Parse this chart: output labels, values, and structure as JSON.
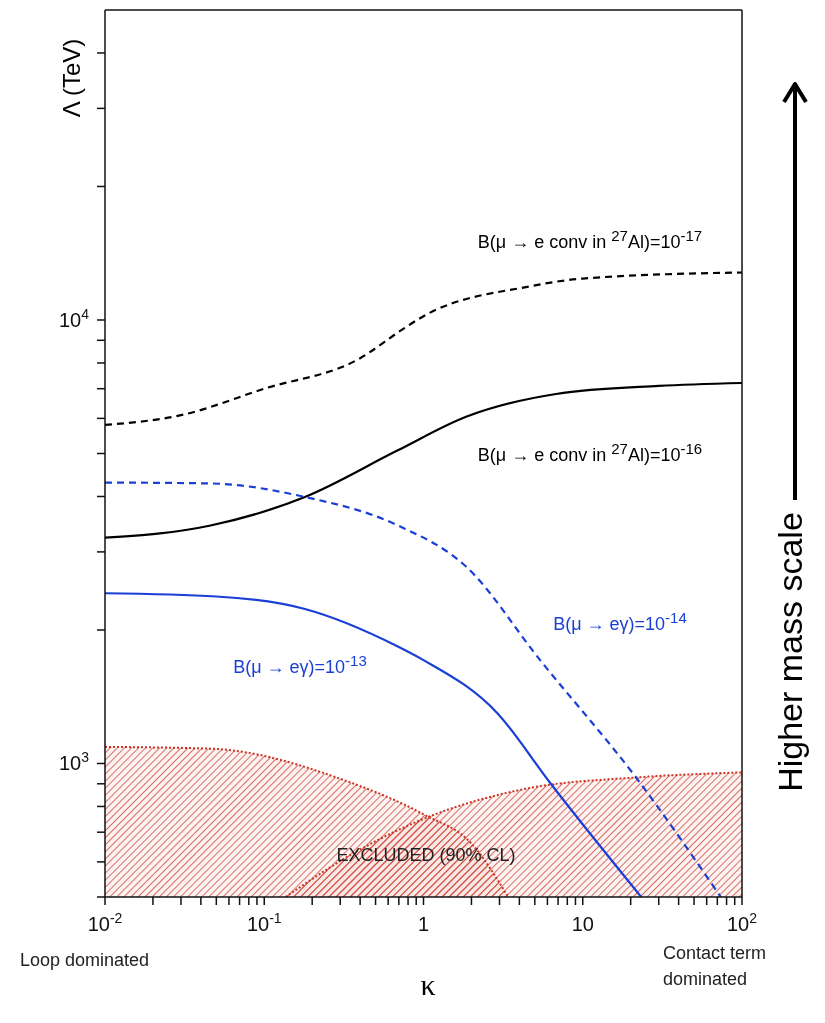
{
  "chart_data": {
    "type": "line",
    "xlabel": "κ",
    "ylabel": "Λ (TeV)",
    "log": "xy",
    "marker": "none",
    "xlim": [
      0.01,
      100
    ],
    "ylim": [
      500,
      50000
    ],
    "xticks": [
      {
        "value": 0.01,
        "label": "10$^{-2}$"
      },
      {
        "value": 0.02,
        "label": null
      },
      {
        "value": 0.03,
        "label": null
      },
      {
        "value": 0.04,
        "label": null
      },
      {
        "value": 0.05,
        "label": null
      },
      {
        "value": 0.06,
        "label": null
      },
      {
        "value": 0.07,
        "label": null
      },
      {
        "value": 0.08,
        "label": null
      },
      {
        "value": 0.09,
        "label": null
      },
      {
        "value": 0.1,
        "label": "10$^{-1}$"
      },
      {
        "value": 0.2,
        "label": null
      },
      {
        "value": 0.3,
        "label": null
      },
      {
        "value": 0.4,
        "label": null
      },
      {
        "value": 0.5,
        "label": null
      },
      {
        "value": 0.6,
        "label": null
      },
      {
        "value": 0.7,
        "label": null
      },
      {
        "value": 0.8,
        "label": null
      },
      {
        "value": 0.9,
        "label": null
      },
      1,
      {
        "value": 2,
        "label": null
      },
      {
        "value": 3,
        "label": null
      },
      {
        "value": 4,
        "label": null
      },
      {
        "value": 5,
        "label": null
      },
      {
        "value": 6,
        "label": null
      },
      {
        "value": 7,
        "label": null
      },
      {
        "value": 8,
        "label": null
      },
      {
        "value": 9,
        "label": null
      },
      10,
      {
        "value": 20,
        "label": null
      },
      {
        "value": 30,
        "label": null
      },
      {
        "value": 40,
        "label": null
      },
      {
        "value": 50,
        "label": null
      },
      {
        "value": 60,
        "label": null
      },
      {
        "value": 70,
        "label": null
      },
      {
        "value": 80,
        "label": null
      },
      {
        "value": 90,
        "label": null
      },
      {
        "value": 100,
        "label": "10$^{2}$"
      }
    ],
    "yticks": [
      {
        "value": 500,
        "label": null
      },
      {
        "value": 600,
        "label": null
      },
      {
        "value": 700,
        "label": null
      },
      {
        "value": 800,
        "label": null
      },
      {
        "value": 900,
        "label": null
      },
      {
        "value": 1000,
        "label": "10$^{3}$"
      },
      {
        "value": 2000,
        "label": null
      },
      {
        "value": 3000,
        "label": null
      },
      {
        "value": 4000,
        "label": null
      },
      {
        "value": 5000,
        "label": null
      },
      {
        "value": 6000,
        "label": null
      },
      {
        "value": 7000,
        "label": null
      },
      {
        "value": 8000,
        "label": null
      },
      {
        "value": 9000,
        "label": null
      },
      {
        "value": 10000,
        "label": "10$^{4}$"
      },
      {
        "value": 20000,
        "label": null
      },
      {
        "value": 30000,
        "label": null
      },
      {
        "value": 40000,
        "label": null
      }
    ],
    "series": [
      {
        "type": "area",
        "color": "#cc3322",
        "line_style": "dotted",
        "x": [
          0.01,
          0.046,
          0.32,
          1,
          2,
          3.4
        ],
        "values": [
          1090,
          1080,
          916,
          768,
          660,
          500
        ]
      },
      {
        "type": "area",
        "color": "#cc3322",
        "line_style": "dotted",
        "x": [
          0.136,
          0.4,
          1,
          4.6,
          21.6,
          100
        ],
        "values": [
          500,
          640,
          750,
          880,
          930,
          955
        ]
      },
      {
        "name": "B(μ → e conv in $^{27}$Al)=10$^{-17}$",
        "color": "#000000",
        "line_style": "dashed",
        "x": [
          0.01,
          0.03,
          0.1,
          0.4,
          0.73,
          1,
          4.6,
          10,
          100
        ],
        "values": [
          5800,
          6100,
          7000,
          8200,
          9500,
          10200,
          11900,
          12400,
          12800
        ]
      },
      {
        "name": "B(μ → e conv in $^{27}$Al)=10$^{-16}$",
        "color": "#000000",
        "line_style": "solid",
        "x": [
          0.01,
          0.046,
          0.18,
          0.68,
          1.85,
          6.8,
          30,
          100
        ],
        "values": [
          3230,
          3440,
          3990,
          5070,
          6050,
          6810,
          7100,
          7210
        ]
      },
      {
        "name": "B(μ → eγ)=10$^{-14}$",
        "color": "#1a3fd6",
        "line_style": "dashed",
        "x": [
          0.01,
          0.046,
          0.18,
          0.68,
          1.85,
          5.4,
          21.6,
          73.6
        ],
        "values": [
          4300,
          4280,
          3990,
          3450,
          2780,
          1710,
          930,
          500
        ]
      },
      {
        "name": "B(μ → eγ)=10$^{-13}$",
        "color": "#1a3fd6",
        "line_style": "solid",
        "x": [
          0.01,
          0.05,
          0.18,
          0.68,
          1,
          2.9,
          6.3,
          23.3
        ],
        "values": [
          2420,
          2380,
          2230,
          1840,
          1710,
          1300,
          900,
          500
        ]
      }
    ],
    "annotations": [
      "EXCLUDED (90% CL)",
      "Loop dominated",
      "Contact term dominated",
      "Higher mass scale"
    ]
  }
}
